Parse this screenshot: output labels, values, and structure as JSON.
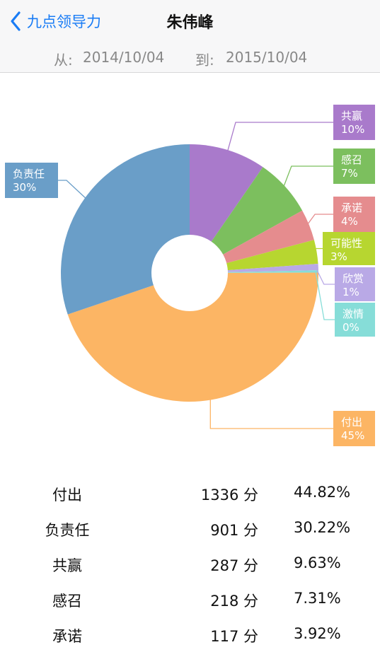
{
  "nav": {
    "back_label": "九点领导力",
    "title": "朱伟峰"
  },
  "dates": {
    "from_label": "从:",
    "from_value": "2014/10/04",
    "to_label": "到:",
    "to_value": "2015/10/04"
  },
  "chart_data": {
    "type": "pie",
    "donut": true,
    "start_angle": "top",
    "direction": "clockwise",
    "title": "",
    "slices": [
      {
        "label": "共赢",
        "percent_label": "10%",
        "value": 9.63,
        "color": "#a97acb"
      },
      {
        "label": "感召",
        "percent_label": "7%",
        "value": 7.31,
        "color": "#7cbf5e"
      },
      {
        "label": "承诺",
        "percent_label": "4%",
        "value": 3.92,
        "color": "#e58c8e"
      },
      {
        "label": "可能性",
        "percent_label": "3%",
        "value": 3.0,
        "color": "#b7d630"
      },
      {
        "label": "欣赏",
        "percent_label": "1%",
        "value": 0.8,
        "color": "#b9a9e6"
      },
      {
        "label": "激情",
        "percent_label": "0%",
        "value": 0.3,
        "color": "#86ddd8"
      },
      {
        "label": "付出",
        "percent_label": "45%",
        "value": 44.82,
        "color": "#fcb564"
      },
      {
        "label": "负责任",
        "percent_label": "30%",
        "value": 30.22,
        "color": "#6a9ec8"
      }
    ]
  },
  "table": {
    "rows": [
      {
        "name": "付出",
        "score": "1336 分",
        "pct": "44.82%"
      },
      {
        "name": "负责任",
        "score": "901 分",
        "pct": "30.22%"
      },
      {
        "name": "共赢",
        "score": "287 分",
        "pct": "9.63%"
      },
      {
        "name": "感召",
        "score": "218 分",
        "pct": "7.31%"
      },
      {
        "name": "承诺",
        "score": "117 分",
        "pct": "3.92%"
      }
    ]
  }
}
